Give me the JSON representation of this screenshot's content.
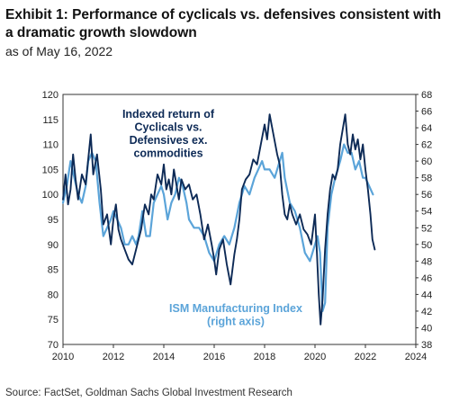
{
  "title": "Exhibit 1: Performance of cyclicals vs. defensives consistent with a dramatic growth slowdown",
  "subtitle": "as of May 16, 2022",
  "source": "Source: FactSet, Goldman Sachs Global Investment Research",
  "colors": {
    "cyclicals": "#0d2a56",
    "ism": "#5ba4d9",
    "axis": "#333333",
    "bg": "#ffffff"
  },
  "chart_data": {
    "type": "line",
    "title": "",
    "xlabel": "",
    "ylabel": "",
    "grid": false,
    "xlim": [
      2010,
      2024
    ],
    "x_ticks": [
      "2010",
      "2012",
      "2014",
      "2016",
      "2018",
      "2020",
      "2022",
      "2024"
    ],
    "ylim_left": [
      70,
      120
    ],
    "y_ticks_left": [
      "70",
      "75",
      "80",
      "85",
      "90",
      "95",
      "100",
      "105",
      "110",
      "115",
      "120"
    ],
    "ylim_right": [
      38,
      68
    ],
    "y_ticks_right": [
      "38",
      "40",
      "42",
      "44",
      "46",
      "48",
      "50",
      "52",
      "54",
      "56",
      "58",
      "60",
      "62",
      "64",
      "66",
      "68"
    ],
    "annotations": [
      {
        "lines": [
          "Indexed return of",
          "Cyclicals vs.",
          "Defensives ex.",
          "commodities"
        ],
        "series": "cyclicals"
      },
      {
        "lines": [
          "ISM Manufacturing Index",
          "(right axis)"
        ],
        "series": "ism"
      }
    ],
    "series": [
      {
        "key": "cyclicals",
        "axis": "left",
        "x": [
          2010.0,
          2010.1,
          2010.2,
          2010.3,
          2010.4,
          2010.5,
          2010.6,
          2010.75,
          2010.9,
          2011.0,
          2011.1,
          2011.2,
          2011.35,
          2011.5,
          2011.6,
          2011.75,
          2011.9,
          2012.0,
          2012.1,
          2012.2,
          2012.3,
          2012.45,
          2012.6,
          2012.75,
          2012.9,
          2013.0,
          2013.1,
          2013.25,
          2013.4,
          2013.5,
          2013.6,
          2013.75,
          2013.9,
          2014.0,
          2014.1,
          2014.2,
          2014.3,
          2014.4,
          2014.5,
          2014.6,
          2014.7,
          2014.85,
          2015.0,
          2015.15,
          2015.3,
          2015.45,
          2015.6,
          2015.75,
          2015.9,
          2016.0,
          2016.08,
          2016.2,
          2016.35,
          2016.5,
          2016.65,
          2016.8,
          2016.9,
          2017.0,
          2017.1,
          2017.25,
          2017.4,
          2017.55,
          2017.7,
          2017.85,
          2018.0,
          2018.1,
          2018.2,
          2018.35,
          2018.5,
          2018.6,
          2018.7,
          2018.8,
          2018.9,
          2019.0,
          2019.1,
          2019.25,
          2019.4,
          2019.55,
          2019.7,
          2019.85,
          2020.0,
          2020.08,
          2020.15,
          2020.22,
          2020.3,
          2020.4,
          2020.5,
          2020.6,
          2020.7,
          2020.8,
          2020.9,
          2021.0,
          2021.1,
          2021.2,
          2021.3,
          2021.4,
          2021.5,
          2021.6,
          2021.7,
          2021.8,
          2021.9,
          2022.0,
          2022.1,
          2022.2,
          2022.28,
          2022.37
        ],
        "values": [
          99,
          104,
          98,
          101,
          108,
          103,
          99,
          104,
          102,
          107,
          112,
          104,
          108,
          101,
          94,
          96,
          90,
          95,
          98,
          93,
          91,
          89,
          87,
          86,
          89,
          91,
          93,
          98,
          96,
          100,
          99,
          104,
          102,
          106,
          101,
          103,
          100,
          105,
          102,
          99,
          103,
          101,
          102,
          99,
          100,
          96,
          91,
          94,
          90,
          87,
          84,
          89,
          91,
          86,
          82,
          88,
          91,
          95,
          101,
          103,
          104,
          107,
          106,
          110,
          114,
          111,
          116,
          112,
          108,
          106,
          100,
          96,
          95,
          98,
          96,
          94,
          96,
          93,
          92,
          90,
          96,
          88,
          80,
          74,
          79,
          89,
          96,
          101,
          104,
          103,
          105,
          110,
          113,
          116,
          110,
          108,
          112,
          109,
          111,
          107,
          110,
          105,
          101,
          96,
          91,
          89
        ]
      },
      {
        "key": "ism",
        "axis": "right",
        "x": [
          2010.0,
          2010.15,
          2010.3,
          2010.45,
          2010.6,
          2010.75,
          2010.9,
          2011.0,
          2011.15,
          2011.3,
          2011.45,
          2011.6,
          2011.75,
          2011.9,
          2012.0,
          2012.15,
          2012.3,
          2012.45,
          2012.6,
          2012.75,
          2012.9,
          2013.0,
          2013.15,
          2013.3,
          2013.45,
          2013.6,
          2013.75,
          2013.9,
          2014.0,
          2014.15,
          2014.3,
          2014.45,
          2014.6,
          2014.75,
          2014.9,
          2015.0,
          2015.2,
          2015.4,
          2015.6,
          2015.8,
          2016.0,
          2016.2,
          2016.4,
          2016.6,
          2016.8,
          2017.0,
          2017.2,
          2017.4,
          2017.6,
          2017.75,
          2017.9,
          2018.0,
          2018.2,
          2018.4,
          2018.6,
          2018.7,
          2018.8,
          2019.0,
          2019.2,
          2019.4,
          2019.6,
          2019.8,
          2020.0,
          2020.1,
          2020.2,
          2020.3,
          2020.4,
          2020.5,
          2020.65,
          2020.8,
          2021.0,
          2021.15,
          2021.3,
          2021.45,
          2021.6,
          2021.75,
          2021.9,
          2022.0,
          2022.15,
          2022.3
        ],
        "values": [
          55,
          57,
          60,
          58,
          56,
          55,
          57,
          60,
          61,
          60,
          55,
          51,
          52,
          53,
          54,
          53,
          52,
          50,
          50,
          51,
          50,
          51,
          54,
          51,
          51,
          55,
          56,
          57,
          56,
          53,
          55,
          56,
          58,
          57,
          55,
          53,
          52,
          52,
          51,
          49,
          48,
          50,
          51,
          50,
          52,
          55,
          57,
          56,
          58,
          59,
          60,
          59,
          59,
          58,
          60,
          61,
          58,
          55,
          54,
          52,
          49,
          48,
          50,
          51,
          49,
          42,
          43,
          52,
          56,
          58,
          60,
          62,
          61,
          61,
          59,
          60,
          58,
          58,
          57,
          56
        ]
      }
    ]
  }
}
